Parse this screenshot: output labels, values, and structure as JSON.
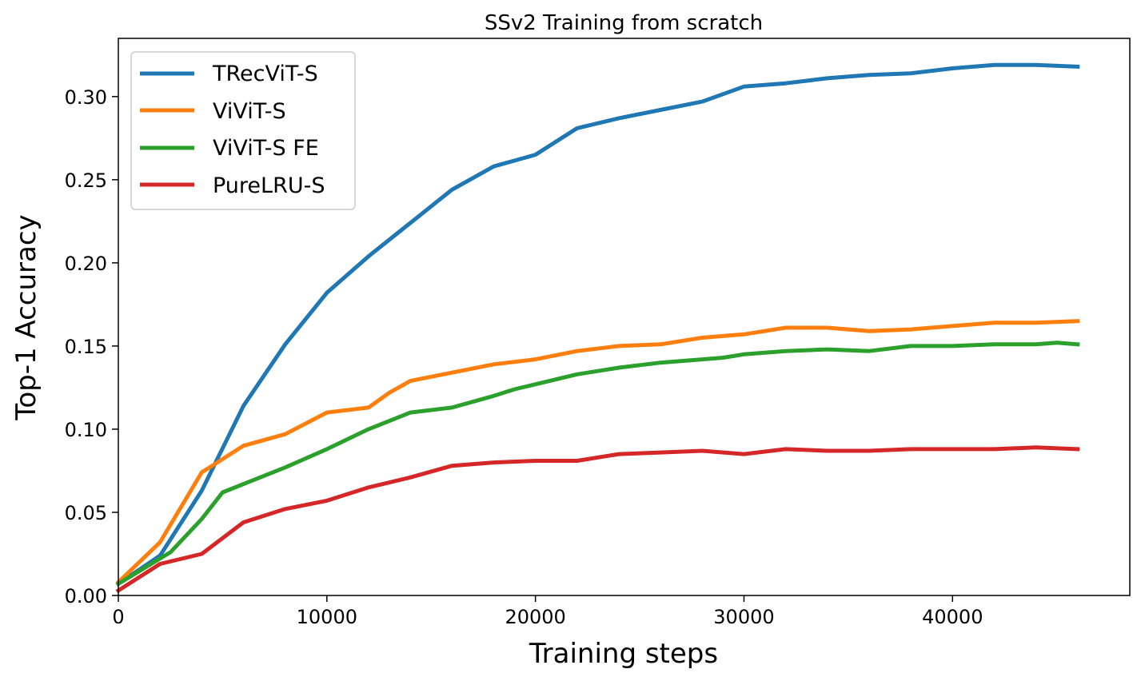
{
  "chart_data": {
    "type": "line",
    "title": "SSv2 Training from scratch",
    "xlabel": "Training steps",
    "ylabel": "Top-1 Accuracy",
    "xlim": [
      0,
      48500
    ],
    "ylim": [
      0,
      0.335
    ],
    "xticks": [
      0,
      10000,
      20000,
      30000,
      40000
    ],
    "xtick_labels": [
      "0",
      "10000",
      "20000",
      "30000",
      "40000"
    ],
    "yticks": [
      0,
      0.05,
      0.1,
      0.15,
      0.2,
      0.25,
      0.3
    ],
    "ytick_labels": [
      "0.00",
      "0.05",
      "0.10",
      "0.15",
      "0.20",
      "0.25",
      "0.30"
    ],
    "grid": false,
    "legend_position": "top-left",
    "series": [
      {
        "name": "TRecViT-S",
        "color": "#1f77b4",
        "x": [
          0,
          2000,
          4000,
          6000,
          8000,
          10000,
          12000,
          14000,
          16000,
          18000,
          20000,
          22000,
          24000,
          26000,
          28000,
          30000,
          32000,
          34000,
          36000,
          38000,
          40000,
          42000,
          44000,
          46000
        ],
        "y": [
          0.007,
          0.024,
          0.063,
          0.114,
          0.151,
          0.182,
          0.204,
          0.224,
          0.244,
          0.258,
          0.265,
          0.281,
          0.287,
          0.292,
          0.297,
          0.306,
          0.308,
          0.311,
          0.313,
          0.314,
          0.317,
          0.319,
          0.319,
          0.318
        ]
      },
      {
        "name": "ViViT-S",
        "color": "#ff7f0e",
        "x": [
          0,
          2000,
          4000,
          6000,
          8000,
          10000,
          12000,
          13000,
          14000,
          16000,
          18000,
          20000,
          22000,
          24000,
          26000,
          28000,
          30000,
          32000,
          34000,
          36000,
          38000,
          40000,
          42000,
          44000,
          46000
        ],
        "y": [
          0.008,
          0.032,
          0.074,
          0.09,
          0.097,
          0.11,
          0.113,
          0.122,
          0.129,
          0.134,
          0.139,
          0.142,
          0.147,
          0.15,
          0.151,
          0.155,
          0.157,
          0.161,
          0.161,
          0.159,
          0.16,
          0.162,
          0.164,
          0.164,
          0.165
        ]
      },
      {
        "name": "ViViT-S FE",
        "color": "#2ca02c",
        "x": [
          0,
          2500,
          4000,
          5000,
          7000,
          8000,
          10000,
          12000,
          14000,
          16000,
          18000,
          19000,
          20000,
          22000,
          24000,
          26000,
          28000,
          29000,
          30000,
          32000,
          34000,
          36000,
          38000,
          40000,
          42000,
          44000,
          45000,
          46000
        ],
        "y": [
          0.007,
          0.026,
          0.046,
          0.062,
          0.072,
          0.077,
          0.088,
          0.1,
          0.11,
          0.113,
          0.12,
          0.124,
          0.127,
          0.133,
          0.137,
          0.14,
          0.142,
          0.143,
          0.145,
          0.147,
          0.148,
          0.147,
          0.15,
          0.15,
          0.151,
          0.151,
          0.152,
          0.151
        ]
      },
      {
        "name": "PureLRU-S",
        "color": "#d62728",
        "x": [
          0,
          2000,
          4000,
          6000,
          8000,
          10000,
          12000,
          14000,
          16000,
          18000,
          20000,
          22000,
          24000,
          26000,
          28000,
          30000,
          32000,
          34000,
          36000,
          38000,
          40000,
          42000,
          44000,
          46000
        ],
        "y": [
          0.003,
          0.019,
          0.025,
          0.044,
          0.052,
          0.057,
          0.065,
          0.071,
          0.078,
          0.08,
          0.081,
          0.081,
          0.085,
          0.086,
          0.087,
          0.085,
          0.088,
          0.087,
          0.087,
          0.088,
          0.088,
          0.088,
          0.089,
          0.088
        ]
      }
    ]
  }
}
